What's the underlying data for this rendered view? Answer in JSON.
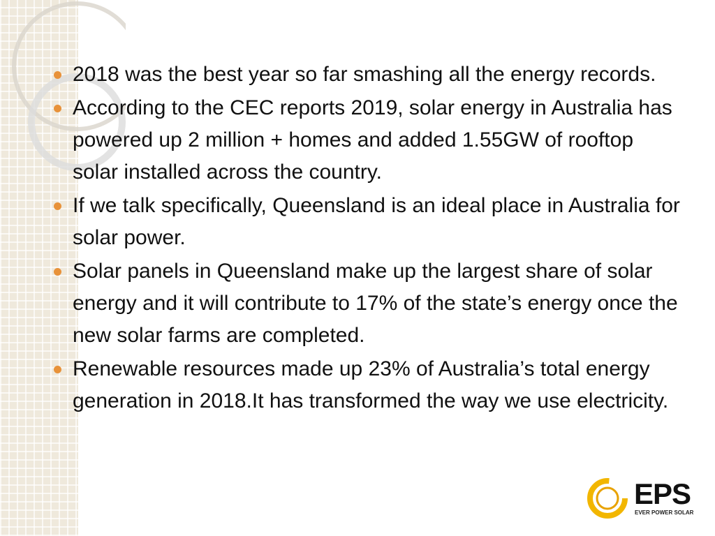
{
  "slide": {
    "bullets": [
      "2018 was the best year so far smashing all the energy records.",
      "According to the CEC reports 2019, solar energy in Australia has powered up 2 million + homes and added 1.55GW of rooftop solar installed across the country.",
      "If we talk specifically, Queensland is an ideal place in Australia for solar power.",
      "Solar panels in Queensland make up the largest share of solar energy and it will contribute to 17% of the state’s energy once the new solar farms are completed.",
      "Renewable resources made up 23% of Australia’s total energy generation in 2018.It has transformed the way we use electricity."
    ]
  },
  "logo": {
    "name": "EPS",
    "tagline": "EVER POWER SOLAR"
  }
}
